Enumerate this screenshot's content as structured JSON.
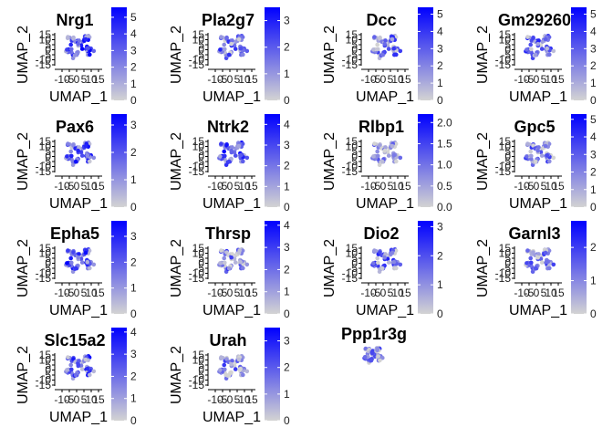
{
  "figure": {
    "gradient_low": "#d3d3d3",
    "gradient_high": "#0000ff",
    "x_axis_label": "UMAP_1",
    "y_axis_label": "UMAP_2",
    "x_tick_labels": [
      "-10",
      "-5",
      "0",
      "5",
      "10",
      "15"
    ],
    "y_tick_labels": [
      "15",
      "10",
      "5",
      "0",
      "-5",
      "-10",
      "-15"
    ]
  },
  "chart_data": [
    {
      "type": "scatter",
      "title": "Nrg1",
      "colorbar_ticks": [
        "5",
        "4",
        "3",
        "2",
        "1",
        "0"
      ],
      "max": 5.6,
      "level": 0.55
    },
    {
      "type": "scatter",
      "title": "Pla2g7",
      "colorbar_ticks": [
        "3",
        "2",
        "1",
        "0"
      ],
      "max": 3.5,
      "level": 0.4
    },
    {
      "type": "scatter",
      "title": "Dcc",
      "colorbar_ticks": [
        "5",
        "4",
        "3",
        "2",
        "1",
        "0"
      ],
      "max": 5.4,
      "level": 0.35
    },
    {
      "type": "scatter",
      "title": "Gm29260",
      "colorbar_ticks": [
        "5",
        "4",
        "3",
        "2",
        "1",
        "0"
      ],
      "max": 5.4,
      "level": 0.45
    },
    {
      "type": "scatter",
      "title": "Pax6",
      "colorbar_ticks": [
        "3",
        "2",
        "1",
        "0"
      ],
      "max": 3.4,
      "level": 0.5
    },
    {
      "type": "scatter",
      "title": "Ntrk2",
      "colorbar_ticks": [
        "4",
        "3",
        "2",
        "1",
        "0"
      ],
      "max": 4.5,
      "level": 0.55
    },
    {
      "type": "scatter",
      "title": "Rlbp1",
      "colorbar_ticks": [
        "2.0",
        "1.5",
        "1.0",
        "0.5",
        "0.0"
      ],
      "max": 2.2,
      "level": 0.25
    },
    {
      "type": "scatter",
      "title": "Gpc5",
      "colorbar_ticks": [
        "5",
        "4",
        "3",
        "2",
        "1",
        "0"
      ],
      "max": 5.3,
      "level": 0.3
    },
    {
      "type": "scatter",
      "title": "Epha5",
      "colorbar_ticks": [
        "3",
        "2",
        "1",
        "0"
      ],
      "max": 3.6,
      "level": 0.55
    },
    {
      "type": "scatter",
      "title": "Thrsp",
      "colorbar_ticks": [
        "4",
        "3",
        "2",
        "1",
        "0"
      ],
      "max": 4.2,
      "level": 0.35
    },
    {
      "type": "scatter",
      "title": "Dio2",
      "colorbar_ticks": [
        "3",
        "2",
        "1",
        "0"
      ],
      "max": 3.2,
      "level": 0.4
    },
    {
      "type": "scatter",
      "title": "Garnl3",
      "colorbar_ticks": [
        "2",
        "1",
        "0"
      ],
      "max": 2.8,
      "level": 0.35
    },
    {
      "type": "scatter",
      "title": "Slc15a2",
      "colorbar_ticks": [
        "4",
        "3",
        "2",
        "1",
        "0"
      ],
      "max": 4.2,
      "level": 0.5
    },
    {
      "type": "scatter",
      "title": "Urah",
      "colorbar_ticks": [
        "3",
        "2",
        "1",
        "0"
      ],
      "max": 3.5,
      "level": 0.3
    },
    {
      "type": "scatter",
      "title": "Ppp1r3g",
      "colorbar_ticks": [],
      "max": 1,
      "level": 0.3
    }
  ]
}
